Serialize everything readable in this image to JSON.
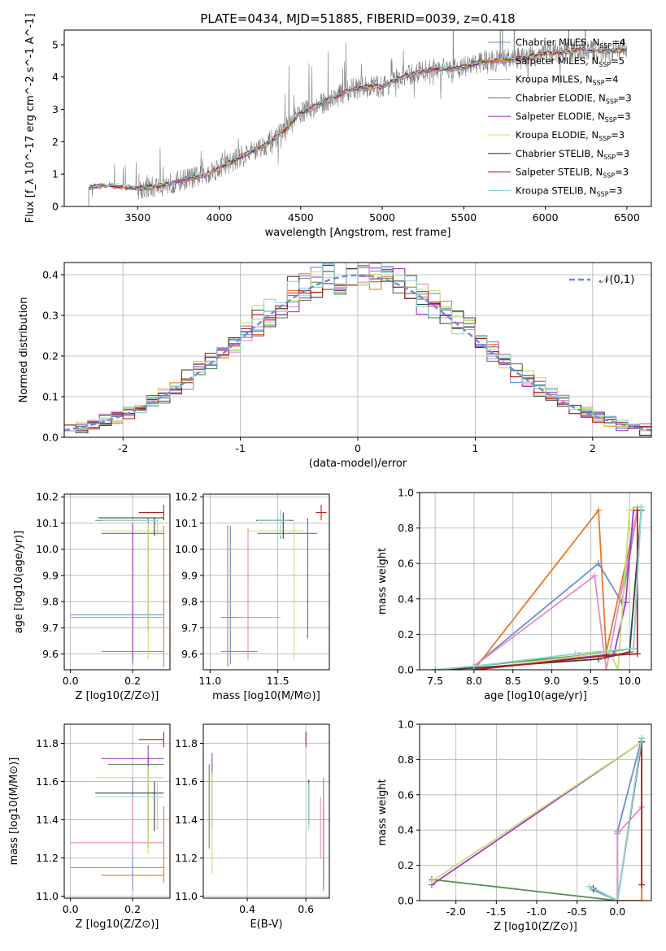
{
  "colors": [
    "#6b8fd4",
    "#e8782a",
    "#e88cc0",
    "#5a8c5a",
    "#a23ebf",
    "#c8e070",
    "#3f3f3f",
    "#b51c1c",
    "#8fd6d6"
  ],
  "series_names": [
    "Chabrier MILES, N_SSP=4",
    "Salpeter MILES, N_SSP=5",
    "Kroupa MILES, N_SSP=4",
    "Chabrier ELODIE, N_SSP=3",
    "Salpeter ELODIE, N_SSP=3",
    "Kroupa ELODIE, N_SSP=3",
    "Chabrier STELIB, N_SSP=3",
    "Salpeter STELIB, N_SSP=3",
    "Kroupa STELIB, N_SSP=3"
  ],
  "chart_data": [
    {
      "id": "spectrum",
      "type": "line",
      "title": "PLATE=0434, MJD=51885, FIBERID=0039, z=0.418",
      "xlabel": "wavelength [Angstrom, rest frame]",
      "ylabel": "Flux [f_λ 10^-17 erg cm^-2 s^-1 A^-1]",
      "xlim": [
        3050,
        6650
      ],
      "ylim": [
        0,
        5.45
      ],
      "xticks": [
        3500,
        4000,
        4500,
        5000,
        5500,
        6000,
        6500
      ],
      "yticks": [
        0,
        1,
        2,
        3,
        4,
        5
      ],
      "grid": false,
      "legend": "right",
      "model_x": [
        3200,
        3300,
        3400,
        3500,
        3600,
        3700,
        3800,
        3900,
        4000,
        4100,
        4200,
        4300,
        4400,
        4500,
        4600,
        4700,
        4800,
        4900,
        5000,
        5100,
        5200,
        5300,
        5400,
        5500,
        5600,
        5700,
        5800,
        5900,
        6000,
        6100,
        6200,
        6300,
        6400,
        6500
      ],
      "model_y": [
        0.6,
        0.65,
        0.6,
        0.55,
        0.6,
        0.7,
        0.85,
        0.95,
        1.2,
        1.45,
        1.7,
        1.95,
        2.35,
        2.9,
        3.1,
        3.35,
        3.6,
        3.7,
        3.7,
        3.95,
        4.1,
        4.25,
        4.25,
        4.3,
        4.45,
        4.5,
        4.55,
        4.6,
        4.75,
        4.75,
        4.85,
        4.8,
        4.8,
        4.85
      ]
    },
    {
      "id": "residuals",
      "type": "histogram",
      "xlabel": "(data-model)/error",
      "ylabel": "Normed distribution",
      "xlim": [
        -2.5,
        2.5
      ],
      "ylim": [
        0,
        0.43
      ],
      "xticks": [
        -2,
        -1,
        0,
        1,
        2
      ],
      "yticks": [
        0.0,
        0.1,
        0.2,
        0.3,
        0.4
      ],
      "grid": true,
      "legend": "top-right",
      "reference_label": "𝒩(0,1)",
      "bin_width": 0.1
    },
    {
      "id": "age_vs_Z",
      "type": "errorbar",
      "xlabel": "Z [log10(Z/Z⊙)]",
      "ylabel": "age  [log10(age/yr)]",
      "xlim": [
        -0.02,
        0.32
      ],
      "ylim": [
        9.54,
        10.21
      ],
      "xticks": [
        0.0,
        0.2
      ],
      "yticks": [
        9.6,
        9.7,
        9.8,
        9.9,
        10.0,
        10.1,
        10.2
      ],
      "grid": true,
      "points": [
        {
          "x": 0.2,
          "xerr": [
            0.2,
            0.2
          ],
          "y": 9.75,
          "yerr": [
            0.2,
            0.3
          ]
        },
        {
          "x": 0.3,
          "xerr": [
            0.1,
            0.3
          ],
          "y": 9.61,
          "yerr": [
            0.06,
            0.45
          ]
        },
        {
          "x": 0.2,
          "xerr": [
            0.0,
            0.3
          ],
          "y": 9.74,
          "yerr": [
            0.2,
            0.3
          ]
        },
        {
          "x": 0.25,
          "xerr": [
            0.12,
            0.25
          ],
          "y": 10.11,
          "yerr": [
            0.25,
            0.27
          ]
        },
        {
          "x": 0.2,
          "xerr": [
            0.1,
            0.3
          ],
          "y": 10.06,
          "yerr": [
            0.5,
            0.47
          ]
        },
        {
          "x": 0.25,
          "xerr": [
            0.15,
            0.3
          ],
          "y": 10.07,
          "yerr": [
            0.51,
            0.48
          ]
        },
        {
          "x": 0.27,
          "xerr": [
            0.19,
            0.3
          ],
          "y": 10.12,
          "yerr": [
            0.1,
            0.23
          ]
        },
        {
          "x": 0.3,
          "xerr": [
            0.22,
            0.3
          ],
          "y": 10.14,
          "yerr": [
            0.08,
            0.15
          ]
        },
        {
          "x": 0.28,
          "xerr": [
            0.1,
            0.3
          ],
          "y": 10.11,
          "yerr": [
            0.15,
            0.22
          ]
        }
      ]
    },
    {
      "id": "age_vs_mass",
      "type": "errorbar",
      "xlabel": "mass [log10(M/M⊙)]",
      "ylabel": "",
      "xlim": [
        10.95,
        11.88
      ],
      "ylim": [
        9.54,
        10.21
      ],
      "xticks": [
        11.0,
        11.5
      ],
      "yticks": [
        9.6,
        9.7,
        9.8,
        9.9,
        10.0,
        10.1,
        10.2
      ],
      "grid": true,
      "points": [
        {
          "x": 11.15,
          "xerr": [
            11.08,
            11.25
          ],
          "y": 9.74,
          "yerr": [
            9.56,
            10.09
          ]
        },
        {
          "x": 11.13,
          "xerr": [
            11.08,
            11.35
          ],
          "y": 9.61,
          "yerr": [
            9.55,
            10.09
          ]
        },
        {
          "x": 11.28,
          "xerr": [
            11.2,
            11.52
          ],
          "y": 9.74,
          "yerr": [
            9.58,
            10.08
          ]
        },
        {
          "x": 11.52,
          "xerr": [
            11.37,
            11.62
          ],
          "y": 10.11,
          "yerr": [
            10.04,
            10.15
          ]
        },
        {
          "x": 11.72,
          "xerr": [
            11.35,
            11.79
          ],
          "y": 10.06,
          "yerr": [
            9.66,
            10.12
          ]
        },
        {
          "x": 11.62,
          "xerr": [
            11.28,
            11.69
          ],
          "y": 10.07,
          "yerr": [
            9.58,
            10.1
          ]
        },
        {
          "x": 11.54,
          "xerr": [
            11.34,
            11.6
          ],
          "y": 10.11,
          "yerr": [
            10.04,
            10.14
          ]
        },
        {
          "x": 11.82,
          "xerr": [
            11.78,
            11.86
          ],
          "y": 10.14,
          "yerr": [
            10.11,
            10.17
          ]
        },
        {
          "x": 11.52,
          "xerr": [
            11.35,
            11.59
          ],
          "y": 10.11,
          "yerr": [
            10.05,
            10.15
          ]
        }
      ]
    },
    {
      "id": "mass_weight_vs_age",
      "type": "line",
      "xlabel": "age  [log10(age/yr)]",
      "ylabel": "mass weight",
      "xlim": [
        7.3,
        10.28
      ],
      "ylim": [
        0,
        1.0
      ],
      "xticks": [
        7.5,
        8.0,
        8.5,
        9.0,
        9.5,
        10.0
      ],
      "yticks": [
        0.0,
        0.2,
        0.4,
        0.6,
        0.8,
        1.0
      ],
      "grid": true,
      "lines": [
        {
          "x": [
            7.5,
            8.0,
            9.6,
            9.9,
            10.1
          ],
          "y": [
            0.0,
            0.02,
            0.6,
            0.38,
            0.9
          ]
        },
        {
          "x": [
            8.0,
            9.6,
            9.7,
            10.1
          ],
          "y": [
            0.0,
            0.9,
            0.1,
            0.9
          ]
        },
        {
          "x": [
            7.5,
            8.0,
            9.55,
            9.7,
            10.1
          ],
          "y": [
            0.0,
            0.02,
            0.53,
            0.0,
            0.9
          ]
        },
        {
          "x": [
            7.5,
            8.0,
            9.35,
            10.05,
            10.15
          ],
          "y": [
            0.0,
            0.02,
            0.08,
            0.12,
            0.92
          ]
        },
        {
          "x": [
            8.0,
            9.8,
            9.95,
            10.05
          ],
          "y": [
            0.0,
            0.09,
            0.38,
            0.9
          ]
        },
        {
          "x": [
            8.0,
            9.75,
            9.85,
            10.0,
            10.1
          ],
          "y": [
            0.0,
            0.1,
            0.0,
            0.9,
            0.92
          ]
        },
        {
          "x": [
            7.5,
            8.0,
            9.6,
            10.0,
            10.15
          ],
          "y": [
            0.0,
            0.01,
            0.06,
            0.1,
            0.9
          ]
        },
        {
          "x": [
            8.0,
            9.7,
            10.1,
            10.1
          ],
          "y": [
            0.0,
            0.08,
            0.09,
            0.9
          ]
        },
        {
          "x": [
            7.5,
            8.0,
            9.3,
            10.05,
            10.15
          ],
          "y": [
            0.0,
            0.02,
            0.09,
            0.12,
            0.92
          ]
        }
      ]
    },
    {
      "id": "mass_vs_Z",
      "type": "errorbar",
      "xlabel": "Z [log10(Z/Z⊙)]",
      "ylabel": "mass [log10(M/M⊙)]",
      "xlim": [
        -0.02,
        0.32
      ],
      "ylim": [
        10.99,
        11.9
      ],
      "xticks": [
        0.0,
        0.2
      ],
      "yticks": [
        11.0,
        11.2,
        11.4,
        11.6,
        11.8
      ],
      "grid": true,
      "points": [
        {
          "x": 0.2,
          "xerr": [
            0.0,
            0.3
          ],
          "y": 11.15,
          "yerr": [
            11.03,
            11.62
          ]
        },
        {
          "x": 0.3,
          "xerr": [
            0.1,
            0.3
          ],
          "y": 11.11,
          "yerr": [
            11.07,
            11.47
          ]
        },
        {
          "x": 0.2,
          "xerr": [
            0.0,
            0.3
          ],
          "y": 11.28,
          "yerr": [
            11.2,
            11.52
          ]
        },
        {
          "x": 0.25,
          "xerr": [
            0.12,
            0.3
          ],
          "y": 11.69,
          "yerr": [
            11.25,
            11.73
          ]
        },
        {
          "x": 0.25,
          "xerr": [
            0.1,
            0.3
          ],
          "y": 11.72,
          "yerr": [
            11.35,
            11.79
          ]
        },
        {
          "x": 0.25,
          "xerr": [
            0.08,
            0.3
          ],
          "y": 11.62,
          "yerr": [
            11.22,
            11.68
          ]
        },
        {
          "x": 0.27,
          "xerr": [
            0.08,
            0.3
          ],
          "y": 11.54,
          "yerr": [
            11.34,
            11.6
          ]
        },
        {
          "x": 0.3,
          "xerr": [
            0.22,
            0.3
          ],
          "y": 11.82,
          "yerr": [
            11.78,
            11.86
          ]
        },
        {
          "x": 0.28,
          "xerr": [
            0.08,
            0.3
          ],
          "y": 11.52,
          "yerr": [
            11.35,
            11.59
          ]
        }
      ]
    },
    {
      "id": "mass_vs_EBV",
      "type": "errorbar",
      "xlabel": "E(B-V)",
      "ylabel": "",
      "xlim": [
        0.25,
        0.68
      ],
      "ylim": [
        10.99,
        11.9
      ],
      "xticks": [
        0.4,
        0.6
      ],
      "yticks": [
        11.0,
        11.2,
        11.4,
        11.6,
        11.8
      ],
      "grid": true,
      "points": [
        {
          "x": 0.66,
          "y": 11.15,
          "yerr": [
            11.03,
            11.62
          ]
        },
        {
          "x": 0.66,
          "y": 11.11,
          "yerr": [
            11.07,
            11.47
          ]
        },
        {
          "x": 0.65,
          "y": 11.28,
          "yerr": [
            11.2,
            11.52
          ]
        },
        {
          "x": 0.27,
          "y": 11.45,
          "yerr": [
            11.25,
            11.69
          ]
        },
        {
          "x": 0.28,
          "y": 11.55,
          "yerr": [
            11.35,
            11.75
          ]
        },
        {
          "x": 0.28,
          "y": 11.4,
          "yerr": [
            11.12,
            11.65
          ]
        },
        {
          "x": 0.61,
          "y": 11.5,
          "yerr": [
            11.38,
            11.61
          ]
        },
        {
          "x": 0.6,
          "y": 11.82,
          "yerr": [
            11.78,
            11.86
          ]
        },
        {
          "x": 0.61,
          "y": 11.48,
          "yerr": [
            11.35,
            11.59
          ]
        }
      ]
    },
    {
      "id": "mass_weight_vs_Z",
      "type": "line",
      "xlabel": "Z [log10(Z/Z⊙)]",
      "ylabel": "mass weight",
      "xlim": [
        -2.45,
        0.42
      ],
      "ylim": [
        0,
        1.0
      ],
      "xticks": [
        -2.0,
        -1.5,
        -1.0,
        -0.5,
        0.0
      ],
      "yticks": [
        0.0,
        0.2,
        0.4,
        0.6,
        0.8,
        1.0
      ],
      "grid": true,
      "lines": [
        {
          "x": [
            -0.3,
            0.0,
            0.0,
            0.3
          ],
          "y": [
            0.06,
            0.0,
            0.39,
            0.92
          ]
        },
        {
          "x": [
            0.0,
            0.3,
            0.3
          ],
          "y": [
            0.0,
            0.0,
            0.9
          ]
        },
        {
          "x": [
            0.0,
            0.0,
            0.3,
            0.3
          ],
          "y": [
            0.0,
            0.38,
            0.53,
            0.9
          ]
        },
        {
          "x": [
            -2.3,
            0.0,
            0.3
          ],
          "y": [
            0.12,
            0.0,
            0.92
          ]
        },
        {
          "x": [
            -2.3,
            0.3
          ],
          "y": [
            0.09,
            0.9
          ]
        },
        {
          "x": [
            -2.3,
            0.3
          ],
          "y": [
            0.11,
            0.9
          ]
        },
        {
          "x": [
            -0.3,
            0.0,
            0.3
          ],
          "y": [
            0.07,
            0.0,
            0.9
          ]
        },
        {
          "x": [
            0.3,
            0.3
          ],
          "y": [
            0.09,
            0.9
          ]
        },
        {
          "x": [
            -0.35,
            0.0,
            0.3
          ],
          "y": [
            0.08,
            0.0,
            0.92
          ]
        }
      ]
    }
  ]
}
